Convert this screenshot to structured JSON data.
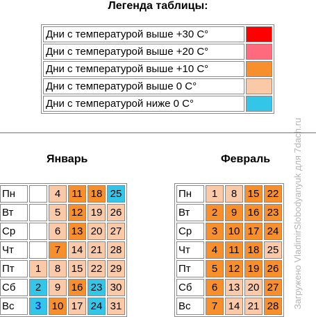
{
  "colors": {
    "above30": "#ff0000",
    "above20": "#ff6b7d",
    "above10": "#f7902c",
    "above0": "#f9c9a8",
    "below0": "#34c6e8",
    "empty": "#ffffff"
  },
  "legend": {
    "title": "Легенда таблицы:",
    "items": [
      {
        "label": "Дни с температурой выше +30 С°",
        "color": "above30"
      },
      {
        "label": "Дни с температурой выше +20 С°",
        "color": "above20"
      },
      {
        "label": "Дни с температурой выше +10 С°",
        "color": "above10"
      },
      {
        "label": "Дни с температурой выше 0 С°",
        "color": "above0"
      },
      {
        "label": "Дни с температурой ниже 0 С°",
        "color": "below0"
      }
    ]
  },
  "january": {
    "title": "Январь",
    "rows": [
      {
        "day": "Пн",
        "cells": [
          {
            "v": "",
            "c": "empty"
          },
          {
            "v": "4",
            "c": "above0"
          },
          {
            "v": "11",
            "c": "above10"
          },
          {
            "v": "18",
            "c": "above10"
          },
          {
            "v": "25",
            "c": "below0"
          }
        ]
      },
      {
        "day": "Вт",
        "cells": [
          {
            "v": "",
            "c": "empty"
          },
          {
            "v": "5",
            "c": "above0"
          },
          {
            "v": "12",
            "c": "above10"
          },
          {
            "v": "19",
            "c": "above0"
          },
          {
            "v": "26",
            "c": "above0"
          }
        ]
      },
      {
        "day": "Ср",
        "cells": [
          {
            "v": "",
            "c": "empty"
          },
          {
            "v": "6",
            "c": "above0"
          },
          {
            "v": "13",
            "c": "above10"
          },
          {
            "v": "20",
            "c": "above0"
          },
          {
            "v": "27",
            "c": "above0"
          }
        ]
      },
      {
        "day": "Чт",
        "cells": [
          {
            "v": "",
            "c": "empty"
          },
          {
            "v": "7",
            "c": "above10"
          },
          {
            "v": "14",
            "c": "above0"
          },
          {
            "v": "21",
            "c": "above0"
          },
          {
            "v": "28",
            "c": "above0"
          }
        ]
      },
      {
        "day": "Пт",
        "cells": [
          {
            "v": "1",
            "c": "above0"
          },
          {
            "v": "8",
            "c": "above0"
          },
          {
            "v": "15",
            "c": "above0"
          },
          {
            "v": "22",
            "c": "above0"
          },
          {
            "v": "29",
            "c": "above0"
          }
        ]
      },
      {
        "day": "Сб",
        "cells": [
          {
            "v": "2",
            "c": "below0"
          },
          {
            "v": "9",
            "c": "above0"
          },
          {
            "v": "16",
            "c": "above10"
          },
          {
            "v": "23",
            "c": "below0"
          },
          {
            "v": "30",
            "c": "above0"
          }
        ]
      },
      {
        "day": "Вс",
        "cells": [
          {
            "v": "3",
            "c": "below0",
            "today": true
          },
          {
            "v": "10",
            "c": "above10"
          },
          {
            "v": "17",
            "c": "above0"
          },
          {
            "v": "24",
            "c": "below0"
          },
          {
            "v": "31",
            "c": "above0"
          }
        ]
      }
    ]
  },
  "february": {
    "title": "Февраль",
    "rows": [
      {
        "day": "Пн",
        "cells": [
          {
            "v": "1",
            "c": "above0"
          },
          {
            "v": "8",
            "c": "above0"
          },
          {
            "v": "15",
            "c": "above10"
          },
          {
            "v": "22",
            "c": "above10"
          }
        ]
      },
      {
        "day": "Вт",
        "cells": [
          {
            "v": "2",
            "c": "above10"
          },
          {
            "v": "9",
            "c": "above10"
          },
          {
            "v": "16",
            "c": "above10"
          },
          {
            "v": "23",
            "c": "above10"
          }
        ]
      },
      {
        "day": "Ср",
        "cells": [
          {
            "v": "3",
            "c": "above10"
          },
          {
            "v": "10",
            "c": "above10"
          },
          {
            "v": "17",
            "c": "above10"
          },
          {
            "v": "24",
            "c": "above10"
          }
        ]
      },
      {
        "day": "Чт",
        "cells": [
          {
            "v": "4",
            "c": "above10"
          },
          {
            "v": "11",
            "c": "above10"
          },
          {
            "v": "18",
            "c": "above10"
          },
          {
            "v": "25",
            "c": "above0"
          }
        ]
      },
      {
        "day": "Пт",
        "cells": [
          {
            "v": "5",
            "c": "above10"
          },
          {
            "v": "12",
            "c": "above10"
          },
          {
            "v": "19",
            "c": "above10"
          },
          {
            "v": "26",
            "c": "above10"
          }
        ]
      },
      {
        "day": "Сб",
        "cells": [
          {
            "v": "6",
            "c": "above10"
          },
          {
            "v": "13",
            "c": "above0"
          },
          {
            "v": "20",
            "c": "above0"
          },
          {
            "v": "27",
            "c": "above10"
          }
        ]
      },
      {
        "day": "Вс",
        "cells": [
          {
            "v": "7",
            "c": "above10"
          },
          {
            "v": "14",
            "c": "above0"
          },
          {
            "v": "21",
            "c": "above0"
          },
          {
            "v": "28",
            "c": "above10"
          }
        ]
      }
    ]
  },
  "watermark": "Загружено VladimirSlobodyanyuk для 7dach.ru"
}
